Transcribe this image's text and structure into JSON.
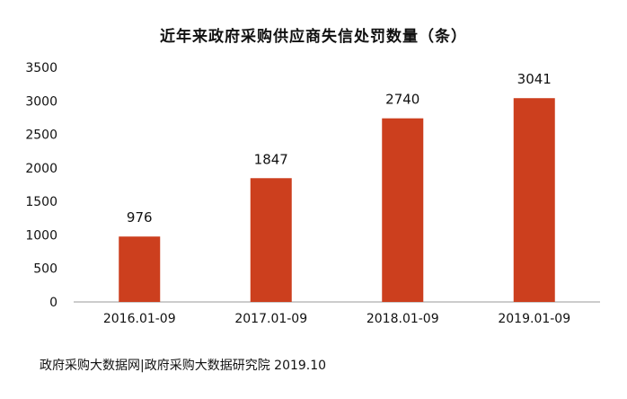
{
  "chart_data": {
    "type": "bar",
    "title": "近年来政府采购供应商失信处罚数量（条）",
    "categories": [
      "2016.01-09",
      "2017.01-09",
      "2018.01-09",
      "2019.01-09"
    ],
    "values": [
      976,
      1847,
      2740,
      3041
    ],
    "data_labels": [
      "976",
      "1847",
      "2740",
      "3041"
    ],
    "yticks": [
      0,
      500,
      1000,
      1500,
      2000,
      2500,
      3000,
      3500
    ],
    "ylim": [
      0,
      3500
    ],
    "xlabel": "",
    "ylabel": "",
    "bar_color": "#cc3f1e",
    "grid": false,
    "legend": "none"
  },
  "source": "政府采购大数据网|政府采购大数据研究院 2019.10"
}
